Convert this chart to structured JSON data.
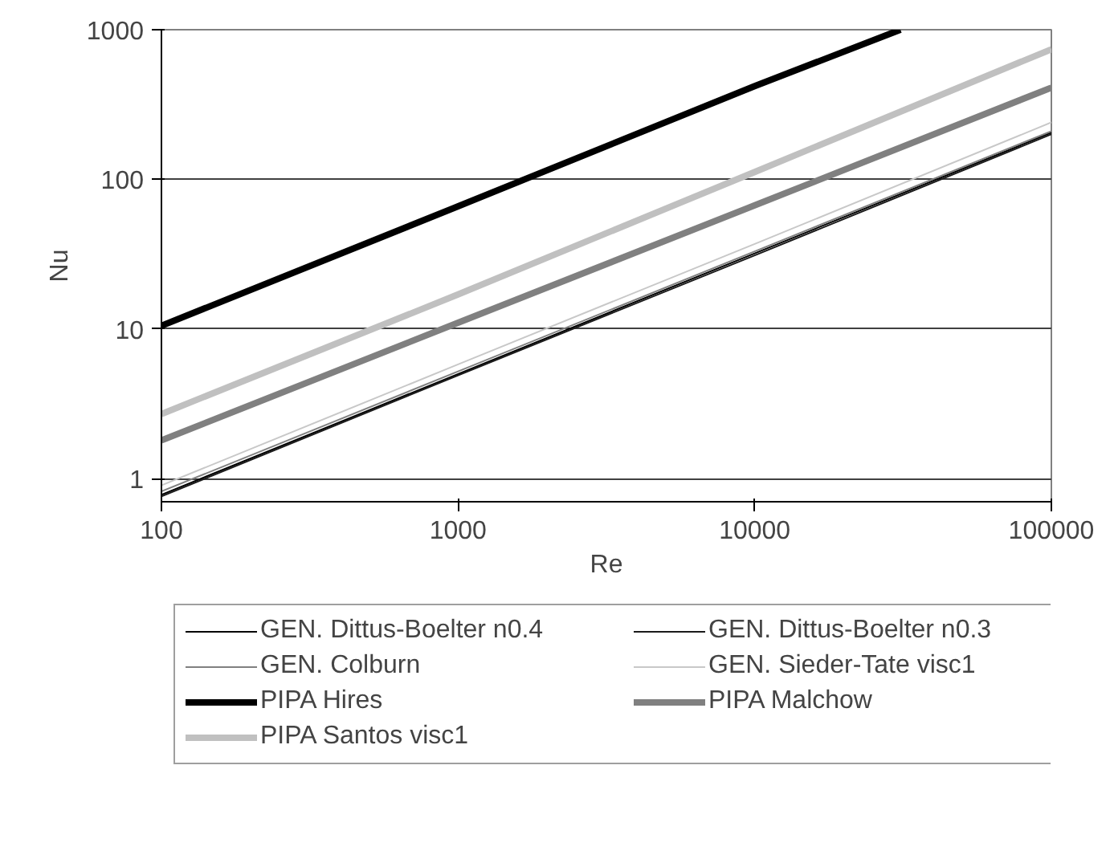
{
  "chart_data": {
    "type": "line",
    "xlabel": "Re",
    "ylabel": "Nu",
    "log": "xy",
    "grid": "y",
    "legend": "bottom",
    "marker": "none",
    "line_style": "solid",
    "x": [
      100,
      1000,
      10000,
      100000
    ],
    "xlim": [
      100,
      100000
    ],
    "xticks": [
      100,
      1000,
      10000,
      100000
    ],
    "ylim": [
      0.7,
      1000
    ],
    "yticks": [
      1,
      10,
      100,
      1000
    ],
    "series": [
      {
        "name": "GEN. Dittus-Boelter n0.4",
        "color": "#000000",
        "values": [
          0.78,
          5,
          32,
          205
        ]
      },
      {
        "name": "GEN. Dittus-Boelter n0.3",
        "color": "#1a1a1a",
        "values": [
          0.76,
          4.9,
          31,
          200
        ]
      },
      {
        "name": "GEN. Colburn",
        "color": "#808080",
        "values": [
          0.82,
          5.2,
          33,
          210
        ]
      },
      {
        "name": "GEN. Sieder-Tate visc1",
        "color": "#c8c8c8",
        "values": [
          0.9,
          5.8,
          37,
          240
        ]
      },
      {
        "name": "PIPA Hires",
        "color": "#000000",
        "x": [
          100,
          1000,
          10000,
          31000
        ],
        "values": [
          10.5,
          66,
          420,
          1000
        ]
      },
      {
        "name": "PIPA Malchow",
        "color": "#808080",
        "values": [
          1.8,
          11,
          67,
          410
        ]
      },
      {
        "name": "PIPA Santos visc1",
        "color": "#c0c0c0",
        "values": [
          2.7,
          17,
          112,
          740
        ]
      }
    ]
  }
}
